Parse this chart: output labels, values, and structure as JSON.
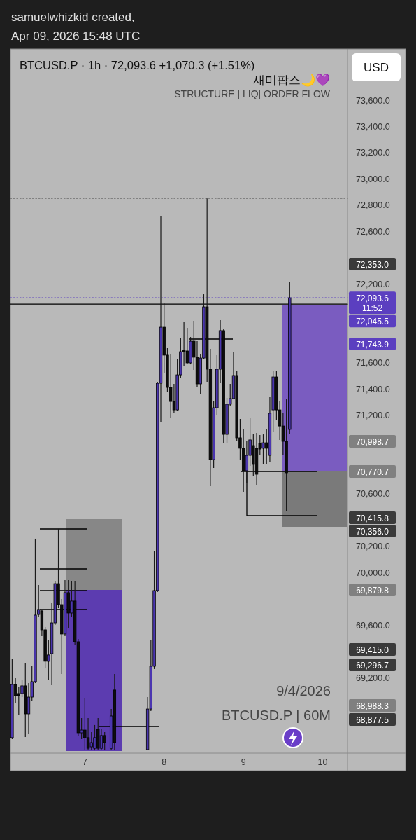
{
  "chart_data": {
    "type": "candlestick",
    "title": "BTCUSD.P · 1h · 72,093.6 +1,070.3 (+1.51%)",
    "subtitle": "STRUCTURE | LIQ| ORDER FLOW",
    "categories": [
      null,
      null,
      null,
      null,
      null,
      null,
      null,
      null,
      null,
      null,
      null,
      null,
      null,
      null,
      null,
      null,
      null,
      null,
      null,
      null,
      null,
      null,
      "7",
      null,
      null,
      null,
      null,
      null,
      null,
      null,
      null,
      null,
      null,
      null,
      null,
      null,
      null,
      null,
      null,
      null,
      null,
      null,
      null,
      null,
      null,
      null,
      "8",
      null,
      null,
      null,
      null,
      null,
      null,
      null,
      null,
      null,
      null,
      null,
      null,
      null,
      null,
      null,
      null,
      null,
      null,
      null,
      null,
      null,
      null,
      null,
      "9",
      null,
      null,
      null,
      null,
      null,
      null,
      null,
      null,
      null,
      null,
      null,
      null,
      null,
      null,
      null,
      null,
      null,
      null,
      null,
      null,
      null,
      null,
      null,
      "10",
      null,
      null,
      null,
      null,
      null,
      null,
      null
    ],
    "ohlc": [
      [
        68742,
        69345,
        68731,
        69147
      ],
      [
        69147,
        69195,
        69009,
        69062
      ],
      [
        69078,
        69131,
        68918,
        69062
      ],
      [
        69078,
        69185,
        69051,
        69137
      ],
      [
        69137,
        69308,
        68747,
        68923
      ],
      [
        68923,
        69158,
        68774,
        69051
      ],
      [
        69051,
        69291,
        69025,
        69169
      ],
      [
        69169,
        70258,
        69158,
        69676
      ],
      [
        69681,
        69905,
        69665,
        69719
      ],
      [
        69708,
        69719,
        69516,
        69564
      ],
      [
        69564,
        69585,
        69275,
        69324
      ],
      [
        69324,
        69489,
        69185,
        69372
      ],
      [
        69382,
        69772,
        69142,
        69617
      ],
      [
        69617,
        69932,
        69601,
        69916
      ],
      [
        69916,
        70333,
        69729,
        69756
      ],
      [
        69756,
        69799,
        69227,
        69532
      ],
      [
        69532,
        69943,
        69516,
        69847
      ],
      [
        69847,
        69943,
        69574,
        69692
      ],
      [
        69692,
        69932,
        69665,
        69783
      ],
      [
        69783,
        69932,
        69452,
        69473
      ],
      [
        69473,
        69494,
        68758,
        68779
      ],
      [
        68779,
        68891,
        68731,
        68800
      ],
      [
        68800,
        69041,
        68651,
        68742
      ],
      [
        68742,
        68891,
        68645,
        68661
      ],
      [
        68672,
        68784,
        68645,
        68704
      ],
      [
        68661,
        68838,
        68645,
        68742
      ],
      [
        68806,
        68891,
        68645,
        68661
      ],
      [
        68661,
        68811,
        68645,
        68758
      ],
      [
        68758,
        68784,
        68645,
        68704
      ],
      null,
      [
        68661,
        68960,
        68645,
        68907
      ],
      [
        69105,
        69227,
        68645,
        68704
      ],
      null,
      null,
      null,
      null,
      null,
      null,
      null,
      null,
      null,
      [
        68651,
        69051,
        68645,
        68960
      ],
      [
        68960,
        69484,
        68944,
        69286
      ],
      [
        69286,
        70162,
        69265,
        69863
      ],
      [
        69863,
        71454,
        69852,
        71443
      ],
      [
        71443,
        72719,
        71144,
        71870
      ],
      [
        71870,
        72057,
        71523,
        71657
      ],
      [
        71657,
        71710,
        71374,
        71411
      ],
      [
        71411,
        71667,
        71176,
        71304
      ],
      [
        71304,
        71438,
        71214,
        71240
      ],
      [
        71240,
        71630,
        71230,
        71507
      ],
      [
        71507,
        71790,
        71480,
        71683
      ],
      [
        71694,
        71908,
        71577,
        71683
      ],
      [
        71689,
        71865,
        71587,
        71598
      ],
      [
        71598,
        71795,
        71587,
        71763
      ],
      [
        71763,
        71918,
        71544,
        71641
      ],
      [
        71641,
        71763,
        71416,
        71438
      ],
      [
        71438,
        71667,
        71358,
        71635
      ],
      [
        71635,
        72121,
        71630,
        72025
      ],
      [
        72025,
        72852,
        71454,
        71550
      ],
      [
        71550,
        71705,
        70664,
        70861
      ],
      [
        70861,
        71310,
        70797,
        71256
      ],
      [
        71256,
        71657,
        71203,
        71550
      ],
      [
        71550,
        71924,
        71443,
        71844
      ],
      [
        71844,
        71854,
        70984,
        71053
      ],
      [
        71053,
        71331,
        70984,
        71283
      ],
      [
        71283,
        71438,
        71267,
        71326
      ],
      [
        71326,
        71683,
        71320,
        71502
      ],
      [
        71502,
        71534,
        71000,
        71027
      ],
      [
        71027,
        71171,
        70856,
        70947
      ],
      [
        70947,
        71091,
        70616,
        70776
      ],
      [
        70776,
        71000,
        70680,
        70893
      ],
      [
        70893,
        71176,
        70813,
        71011
      ],
      [
        70968,
        71053,
        70733,
        70824
      ],
      [
        70947,
        71064,
        70669,
        70749
      ],
      [
        70984,
        71048,
        70893,
        70941
      ],
      [
        70947,
        71053,
        70829,
        70989
      ],
      [
        70989,
        71091,
        70829,
        70947
      ],
      [
        70893,
        71336,
        70840,
        71214
      ],
      [
        71240,
        71534,
        71069,
        71491
      ],
      [
        71491,
        71534,
        71160,
        71240
      ],
      [
        71240,
        71310,
        71011,
        71117
      ],
      [
        71117,
        71214,
        70893,
        71000
      ],
      [
        71000,
        71320,
        70466,
        70760
      ],
      [
        71091,
        72212,
        71053,
        72093.6
      ],
      null,
      null,
      null,
      null,
      null,
      null,
      null,
      null,
      null,
      null,
      null,
      null,
      null,
      null,
      null,
      null,
      null
    ],
    "ylim": [
      68640,
      73990
    ],
    "yticks": [
      {
        "value": 69200,
        "label": "69,200.0"
      },
      {
        "value": 69600,
        "label": "69,600.0"
      },
      {
        "value": 70000,
        "label": "70,000.0"
      },
      {
        "value": 70200,
        "label": "70,200.0"
      },
      {
        "value": 70600,
        "label": "70,600.0"
      },
      {
        "value": 71200,
        "label": "71,200.0"
      },
      {
        "value": 71400,
        "label": "71,400.0"
      },
      {
        "value": 71600,
        "label": "71,600.0"
      },
      {
        "value": 72200,
        "label": "72,200.0"
      },
      {
        "value": 72600,
        "label": "72,600.0"
      },
      {
        "value": 72800,
        "label": "72,800.0"
      },
      {
        "value": 73000,
        "label": "73,000.0"
      },
      {
        "value": 73200,
        "label": "73,200.0"
      },
      {
        "value": 73400,
        "label": "73,400.0"
      },
      {
        "value": 73600,
        "label": "73,600.0"
      }
    ],
    "ref_lines": [
      {
        "axis": "y",
        "value": 72852,
        "color": "#6e6e6e",
        "line_style": "dotted"
      },
      {
        "axis": "y",
        "value": 72093.6,
        "label": "72,093.6\n11:52",
        "color": "#5b3fc0",
        "line_style": "dotted"
      },
      {
        "axis": "y",
        "value": 72045.5,
        "label": "72,045.5",
        "color": "#000000",
        "line_style": "solid"
      }
    ],
    "annotations": [
      "samuelwhizkid created,",
      "Apr 09, 2026 15:48 UTC",
      "새미팝스🌙💜",
      "USD",
      "9/4/2026",
      "BTCUSD.P | 60M",
      "72,353.0",
      "71,743.9",
      "70,998.7",
      "70,770.7",
      "70,415.8",
      "70,356.0",
      "69,879.8",
      "69,415.0",
      "69,296.7",
      "68,988.3",
      "68,877.5"
    ],
    "grid": false
  }
}
